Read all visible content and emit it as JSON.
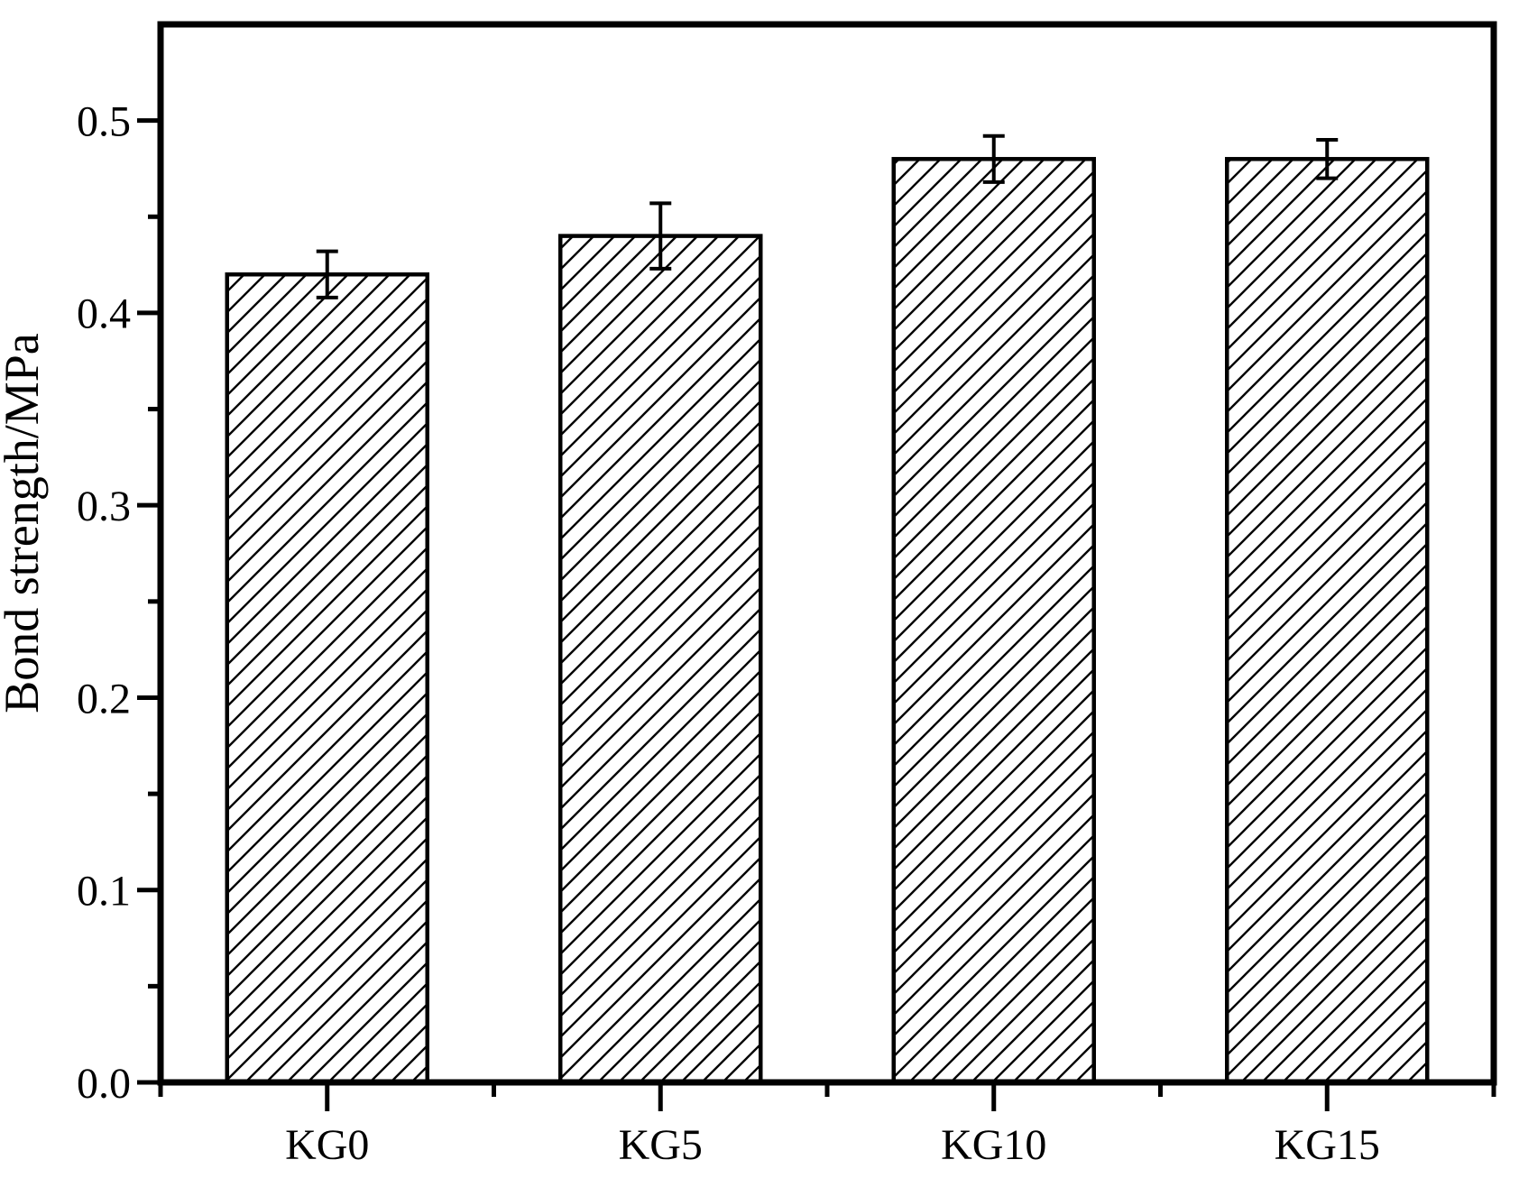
{
  "chart_data": {
    "type": "bar",
    "title": "",
    "xlabel": "",
    "ylabel": "Bond strength/MPa",
    "categories": [
      "KG0",
      "KG5",
      "KG10",
      "KG15"
    ],
    "values": [
      0.42,
      0.44,
      0.48,
      0.48
    ],
    "errors": [
      0.012,
      0.017,
      0.012,
      0.01
    ],
    "ylim": [
      0.0,
      0.55
    ],
    "yticks": [
      {
        "value": 0.0,
        "label": "0.0"
      },
      {
        "value": 0.1,
        "label": "0.1"
      },
      {
        "value": 0.2,
        "label": "0.2"
      },
      {
        "value": 0.3,
        "label": "0.3"
      },
      {
        "value": 0.4,
        "label": "0.4"
      },
      {
        "value": 0.5,
        "label": "0.5"
      }
    ],
    "minor_ytick_step": 0.05,
    "grid": false,
    "legend": null,
    "bar_fill_style": "diagonal-hatch",
    "bar_outline_color": "#000000",
    "hatch_color": "#000000",
    "background_color": "#ffffff"
  }
}
